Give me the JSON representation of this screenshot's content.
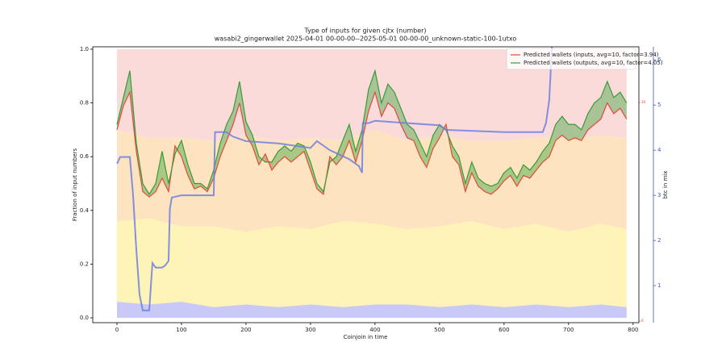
{
  "chart_data": {
    "type": "line",
    "title": "Type of inputs for given cjtx (number)",
    "subtitle": "wasabi2_gingerwallet 2025-04-01 00-00-00--2025-05-01 00-00-00_unknown-static-100-1utxo",
    "xlabel": "Coinjoin in time",
    "ylabel": "Fraction of input numbers",
    "y2label": "btc in mix",
    "xlim": [
      -37.5,
      809
    ],
    "xticks": [
      0,
      100,
      200,
      300,
      400,
      500,
      600,
      700,
      800
    ],
    "ylim": [
      -0.018,
      1.009
    ],
    "yticks": [
      {
        "value": 0,
        "label": "0.0"
      },
      0.2,
      0.4,
      0.6,
      0.8,
      {
        "value": 1,
        "label": "1.0"
      }
    ],
    "y2lim": [
      0.18,
      6.29
    ],
    "y2ticks": [
      1,
      2,
      3,
      4,
      5,
      6
    ],
    "y2color": "#4055d0",
    "y3lim": [
      -0.07,
      12.55
    ],
    "y3ticks": [
      0,
      10
    ],
    "y3color": "#e03030",
    "legend": "upper right",
    "fill_between": {
      "positive_color": "#2ca02c",
      "negative_color": "#e02020"
    },
    "background": {
      "x": [
        0,
        50,
        100,
        150,
        200,
        250,
        300,
        350,
        400,
        450,
        500,
        550,
        600,
        650,
        700,
        750,
        790
      ],
      "series": [
        {
          "color": "#c9c9f7",
          "values": [
            0.06,
            0.05,
            0.06,
            0.04,
            0.05,
            0.04,
            0.05,
            0.04,
            0.05,
            0.05,
            0.04,
            0.05,
            0.04,
            0.05,
            0.04,
            0.05,
            0.04
          ]
        },
        {
          "color": "#fff4b8",
          "values": [
            0.3,
            0.32,
            0.28,
            0.3,
            0.27,
            0.3,
            0.28,
            0.32,
            0.3,
            0.28,
            0.3,
            0.31,
            0.29,
            0.3,
            0.28,
            0.3,
            0.29
          ]
        },
        {
          "color": "#fde3c0",
          "values": [
            0.34,
            0.3,
            0.33,
            0.32,
            0.36,
            0.32,
            0.34,
            0.3,
            0.35,
            0.33,
            0.34,
            0.3,
            0.33,
            0.32,
            0.35,
            0.33,
            0.34
          ]
        },
        {
          "color": "#fbdada",
          "values": [
            0.3,
            0.33,
            0.33,
            0.34,
            0.32,
            0.34,
            0.33,
            0.34,
            0.3,
            0.34,
            0.32,
            0.34,
            0.34,
            0.33,
            0.33,
            0.32,
            0.33
          ]
        }
      ]
    },
    "series": [
      {
        "name": "Predicted wallets (inputs, avg=10, factor=3.94)",
        "color": "#e04a3a",
        "x": [
          0,
          10,
          20,
          30,
          40,
          50,
          60,
          70,
          80,
          90,
          100,
          110,
          120,
          130,
          140,
          150,
          160,
          170,
          180,
          190,
          200,
          210,
          220,
          230,
          240,
          250,
          260,
          270,
          280,
          290,
          300,
          310,
          320,
          330,
          340,
          350,
          360,
          370,
          380,
          390,
          400,
          410,
          420,
          430,
          440,
          450,
          460,
          470,
          480,
          490,
          500,
          510,
          520,
          530,
          540,
          550,
          560,
          570,
          580,
          590,
          600,
          610,
          620,
          630,
          640,
          650,
          660,
          670,
          680,
          690,
          700,
          710,
          720,
          730,
          740,
          750,
          760,
          770,
          780,
          790
        ],
        "values": [
          0.7,
          0.79,
          0.84,
          0.62,
          0.47,
          0.45,
          0.47,
          0.52,
          0.47,
          0.64,
          0.6,
          0.53,
          0.48,
          0.49,
          0.47,
          0.52,
          0.6,
          0.66,
          0.72,
          0.8,
          0.68,
          0.64,
          0.57,
          0.61,
          0.55,
          0.58,
          0.6,
          0.58,
          0.6,
          0.62,
          0.55,
          0.48,
          0.46,
          0.6,
          0.57,
          0.6,
          0.66,
          0.58,
          0.66,
          0.77,
          0.84,
          0.75,
          0.8,
          0.78,
          0.72,
          0.67,
          0.66,
          0.6,
          0.56,
          0.63,
          0.67,
          0.72,
          0.6,
          0.57,
          0.47,
          0.54,
          0.49,
          0.47,
          0.46,
          0.48,
          0.51,
          0.53,
          0.49,
          0.53,
          0.52,
          0.55,
          0.58,
          0.6,
          0.66,
          0.68,
          0.66,
          0.67,
          0.66,
          0.7,
          0.72,
          0.74,
          0.8,
          0.76,
          0.78,
          0.74
        ]
      },
      {
        "name": "Predicted wallets (outputs, avg=10, factor=4.05)",
        "color": "#3a9a3a",
        "x": [
          0,
          10,
          20,
          30,
          40,
          50,
          60,
          70,
          80,
          90,
          100,
          110,
          120,
          130,
          140,
          150,
          160,
          170,
          180,
          190,
          200,
          210,
          220,
          230,
          240,
          250,
          260,
          270,
          280,
          290,
          300,
          310,
          320,
          330,
          340,
          350,
          360,
          370,
          380,
          390,
          400,
          410,
          420,
          430,
          440,
          450,
          460,
          470,
          480,
          490,
          500,
          510,
          520,
          530,
          540,
          550,
          560,
          570,
          580,
          590,
          600,
          610,
          620,
          630,
          640,
          650,
          660,
          670,
          680,
          690,
          700,
          710,
          720,
          730,
          740,
          750,
          760,
          770,
          780,
          790
        ],
        "values": [
          0.72,
          0.82,
          0.92,
          0.65,
          0.5,
          0.46,
          0.5,
          0.62,
          0.5,
          0.61,
          0.66,
          0.57,
          0.5,
          0.5,
          0.48,
          0.55,
          0.65,
          0.72,
          0.77,
          0.88,
          0.73,
          0.68,
          0.6,
          0.58,
          0.58,
          0.62,
          0.64,
          0.62,
          0.65,
          0.64,
          0.58,
          0.5,
          0.47,
          0.58,
          0.6,
          0.66,
          0.72,
          0.62,
          0.7,
          0.85,
          0.92,
          0.8,
          0.87,
          0.84,
          0.78,
          0.72,
          0.7,
          0.65,
          0.6,
          0.68,
          0.72,
          0.7,
          0.64,
          0.6,
          0.5,
          0.58,
          0.52,
          0.5,
          0.49,
          0.5,
          0.54,
          0.56,
          0.52,
          0.57,
          0.55,
          0.58,
          0.62,
          0.65,
          0.72,
          0.75,
          0.72,
          0.72,
          0.7,
          0.76,
          0.8,
          0.82,
          0.88,
          0.82,
          0.84,
          0.8
        ]
      },
      {
        "color": "#6f7fe0",
        "axis": "y2",
        "x": [
          0,
          5,
          20,
          25,
          30,
          35,
          40,
          50,
          55,
          60,
          70,
          75,
          80,
          82,
          85,
          100,
          150,
          152,
          170,
          180,
          200,
          250,
          300,
          310,
          330,
          360,
          375,
          380,
          381,
          390,
          400,
          450,
          500,
          510,
          600,
          660,
          665,
          670,
          675
        ],
        "values": [
          3.7,
          3.85,
          3.85,
          3.0,
          1.8,
          0.8,
          0.45,
          0.45,
          1.5,
          1.4,
          1.4,
          1.45,
          1.55,
          2.7,
          2.95,
          3.0,
          3.0,
          4.4,
          4.4,
          4.3,
          4.2,
          4.15,
          4.05,
          4.2,
          4.0,
          3.8,
          3.65,
          3.5,
          4.6,
          4.6,
          4.65,
          4.6,
          4.55,
          4.45,
          4.4,
          4.4,
          4.6,
          5.1,
          6.5
        ]
      }
    ]
  }
}
